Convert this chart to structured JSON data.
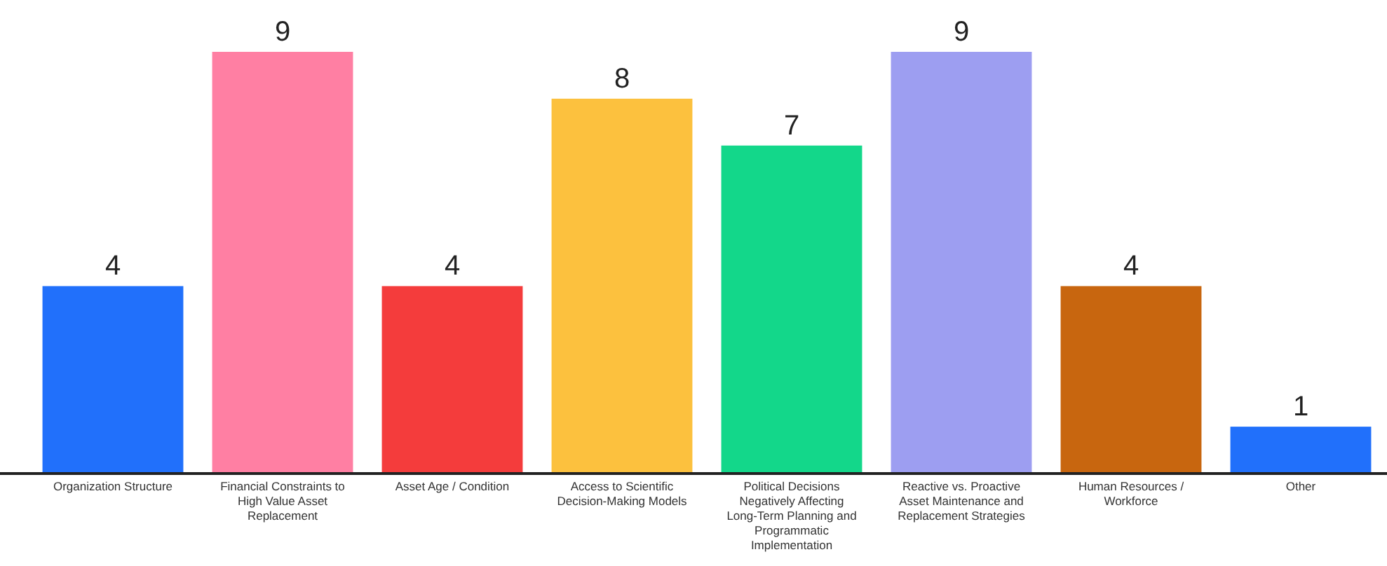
{
  "chart_data": {
    "type": "bar",
    "categories": [
      "Organization Structure",
      "Financial Constraints to High Value Asset Replacement",
      "Asset Age / Condition",
      "Access to Scientific Decision-Making Models",
      "Political Decisions Negatively Affecting Long-Term Planning and Programmatic Implementation",
      "Reactive vs. Proactive Asset Maintenance and Replacement Strategies",
      "Human Resources / Workforce",
      "Other"
    ],
    "values": [
      4,
      9,
      4,
      8,
      7,
      9,
      4,
      1
    ],
    "colors": [
      "#2170fb",
      "#ff7fa3",
      "#f43c3c",
      "#fcc13e",
      "#13d78a",
      "#9d9ef1",
      "#c8660f",
      "#2170fb"
    ],
    "data_labels": true
  }
}
